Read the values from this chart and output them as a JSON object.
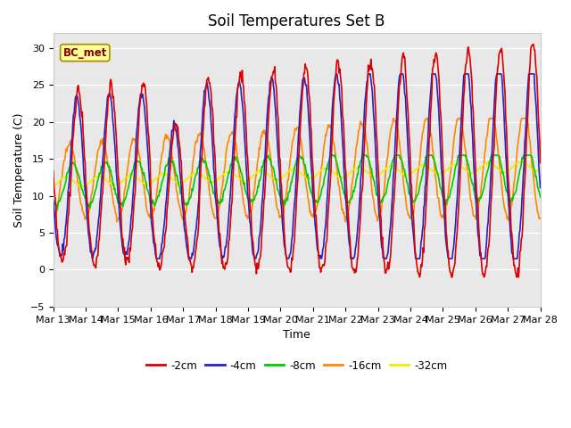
{
  "title": "Soil Temperatures Set B",
  "xlabel": "Time",
  "ylabel": "Soil Temperature (C)",
  "ylim": [
    -5,
    32
  ],
  "bg_color": "#e8e8e8",
  "plot_bg_color": "#e8e8e8",
  "series_colors": {
    "-2cm": "#dd0000",
    "-4cm": "#2222cc",
    "-8cm": "#00cc00",
    "-16cm": "#ff8800",
    "-32cm": "#eeee00"
  },
  "n_points": 720,
  "start_day": 13,
  "end_day": 28,
  "yticks": [
    -5,
    0,
    5,
    10,
    15,
    20,
    25,
    30
  ],
  "xtick_days": [
    13,
    14,
    15,
    16,
    17,
    18,
    19,
    20,
    21,
    22,
    23,
    24,
    25,
    26,
    27,
    28
  ],
  "legend_label": "BC_met",
  "title_fontsize": 12,
  "label_fontsize": 9,
  "tick_fontsize": 8
}
